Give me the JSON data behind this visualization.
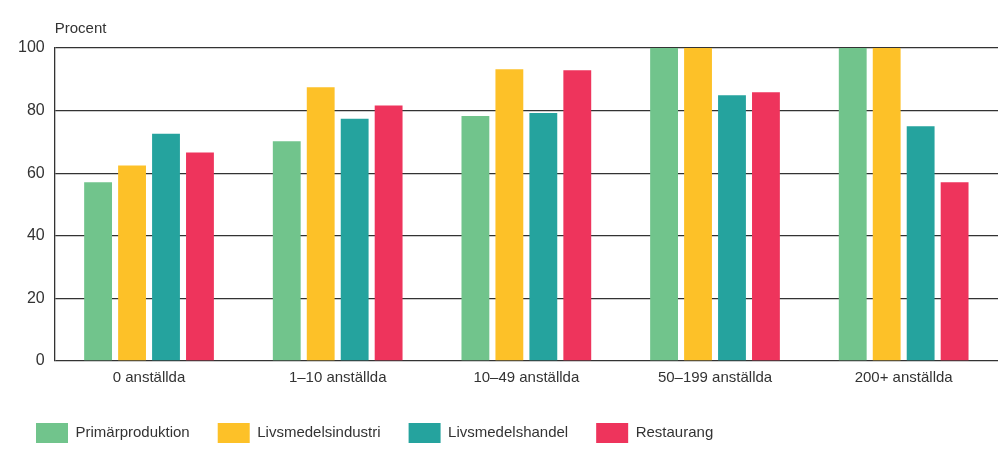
{
  "chart_data": {
    "type": "bar",
    "ylabel": "Procent",
    "categories": [
      "0 anställda",
      "1–10 anställda",
      "10–49 anställda",
      "50–199 anställda",
      "200+ anställda"
    ],
    "series": [
      {
        "name": "Primärproduktion",
        "color": "#71c48c",
        "values": [
          57.1,
          70.2,
          78.3,
          100,
          100
        ]
      },
      {
        "name": "Livsmedelsindustri",
        "color": "#fdc128",
        "values": [
          62.5,
          87.5,
          93.2,
          100,
          100
        ]
      },
      {
        "name": "Livsmedelshandel",
        "color": "#25a39e",
        "values": [
          72.6,
          77.4,
          79.2,
          84.9,
          75.0
        ]
      },
      {
        "name": "Restaurang",
        "color": "#ee345c",
        "values": [
          66.6,
          81.6,
          92.9,
          85.9,
          57.1
        ]
      }
    ],
    "ylim": [
      0,
      100
    ],
    "yticks": [
      0,
      20,
      40,
      60,
      80,
      100
    ],
    "grid": "y",
    "legend": "bottom"
  }
}
